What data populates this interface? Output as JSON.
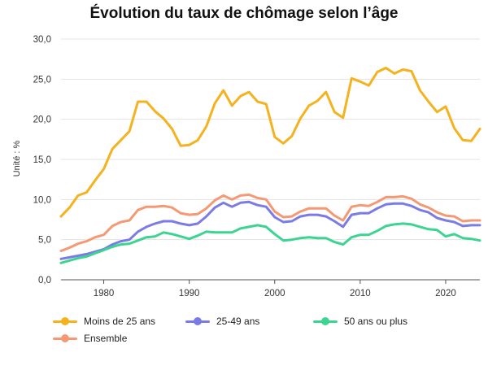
{
  "chart_data": {
    "type": "line",
    "title": "Évolution du taux de chômage selon l’âge",
    "xlabel": "",
    "ylabel": "Unité : %",
    "xlim": [
      1975,
      2024
    ],
    "ylim": [
      0,
      30
    ],
    "x_ticks": [
      1980,
      1990,
      2000,
      2010,
      2020
    ],
    "y_ticks": [
      "0,0",
      "5,0",
      "10,0",
      "15,0",
      "20,0",
      "25,0",
      "30,0"
    ],
    "y_tick_values": [
      0,
      5,
      10,
      15,
      20,
      25,
      30
    ],
    "grid": "horizontal",
    "legend_position": "bottom",
    "x": [
      1975,
      1976,
      1977,
      1978,
      1979,
      1980,
      1981,
      1982,
      1983,
      1984,
      1985,
      1986,
      1987,
      1988,
      1989,
      1990,
      1991,
      1992,
      1993,
      1994,
      1995,
      1996,
      1997,
      1998,
      1999,
      2000,
      2001,
      2002,
      2003,
      2004,
      2005,
      2006,
      2007,
      2008,
      2009,
      2010,
      2011,
      2012,
      2013,
      2014,
      2015,
      2016,
      2017,
      2018,
      2019,
      2020,
      2021,
      2022,
      2023,
      2024
    ],
    "series": [
      {
        "name": "Moins de 25 ans",
        "color": "#f5b21f",
        "values": [
          7.9,
          9.0,
          10.5,
          10.9,
          12.4,
          13.8,
          16.3,
          17.4,
          18.5,
          22.2,
          22.2,
          21.0,
          20.1,
          18.8,
          16.7,
          16.8,
          17.4,
          19.1,
          22.0,
          23.6,
          21.7,
          22.9,
          23.4,
          22.2,
          21.9,
          17.8,
          17.0,
          17.9,
          20.1,
          21.7,
          22.3,
          23.4,
          20.9,
          20.2,
          25.1,
          24.7,
          24.2,
          25.9,
          26.4,
          25.7,
          26.2,
          26.0,
          23.6,
          22.2,
          20.9,
          21.6,
          18.9,
          17.4,
          17.3,
          18.8
        ]
      },
      {
        "name": "25-49 ans",
        "color": "#7b7be6",
        "values": [
          2.6,
          2.8,
          3.0,
          3.2,
          3.5,
          3.8,
          4.4,
          4.8,
          5.0,
          6.0,
          6.6,
          7.0,
          7.3,
          7.3,
          7.0,
          6.8,
          7.0,
          7.9,
          9.0,
          9.6,
          9.1,
          9.6,
          9.7,
          9.3,
          9.1,
          7.8,
          7.2,
          7.3,
          7.9,
          8.1,
          8.1,
          7.9,
          7.3,
          6.6,
          8.1,
          8.3,
          8.3,
          8.9,
          9.4,
          9.5,
          9.5,
          9.2,
          8.7,
          8.4,
          7.7,
          7.4,
          7.2,
          6.7,
          6.8,
          6.8
        ]
      },
      {
        "name": "50 ans ou plus",
        "color": "#3dd491",
        "values": [
          2.1,
          2.4,
          2.7,
          2.9,
          3.3,
          3.7,
          4.1,
          4.4,
          4.5,
          4.9,
          5.3,
          5.4,
          5.9,
          5.7,
          5.4,
          5.1,
          5.5,
          6.0,
          5.9,
          5.9,
          5.9,
          6.4,
          6.6,
          6.8,
          6.6,
          5.7,
          4.9,
          5.0,
          5.2,
          5.3,
          5.2,
          5.2,
          4.7,
          4.4,
          5.3,
          5.6,
          5.6,
          6.1,
          6.7,
          6.9,
          7.0,
          6.9,
          6.6,
          6.3,
          6.2,
          5.4,
          5.7,
          5.2,
          5.1,
          4.9
        ]
      },
      {
        "name": "Ensemble",
        "color": "#f59874",
        "values": [
          3.6,
          4.0,
          4.5,
          4.8,
          5.3,
          5.6,
          6.7,
          7.2,
          7.4,
          8.7,
          9.1,
          9.1,
          9.2,
          9.0,
          8.3,
          8.1,
          8.2,
          8.9,
          9.9,
          10.5,
          10.0,
          10.5,
          10.6,
          10.2,
          10.0,
          8.5,
          7.8,
          7.9,
          8.5,
          8.9,
          8.9,
          8.9,
          8.0,
          7.4,
          9.1,
          9.3,
          9.2,
          9.7,
          10.3,
          10.3,
          10.4,
          10.1,
          9.4,
          9.0,
          8.4,
          8.0,
          7.9,
          7.3,
          7.4,
          7.4
        ]
      }
    ]
  }
}
